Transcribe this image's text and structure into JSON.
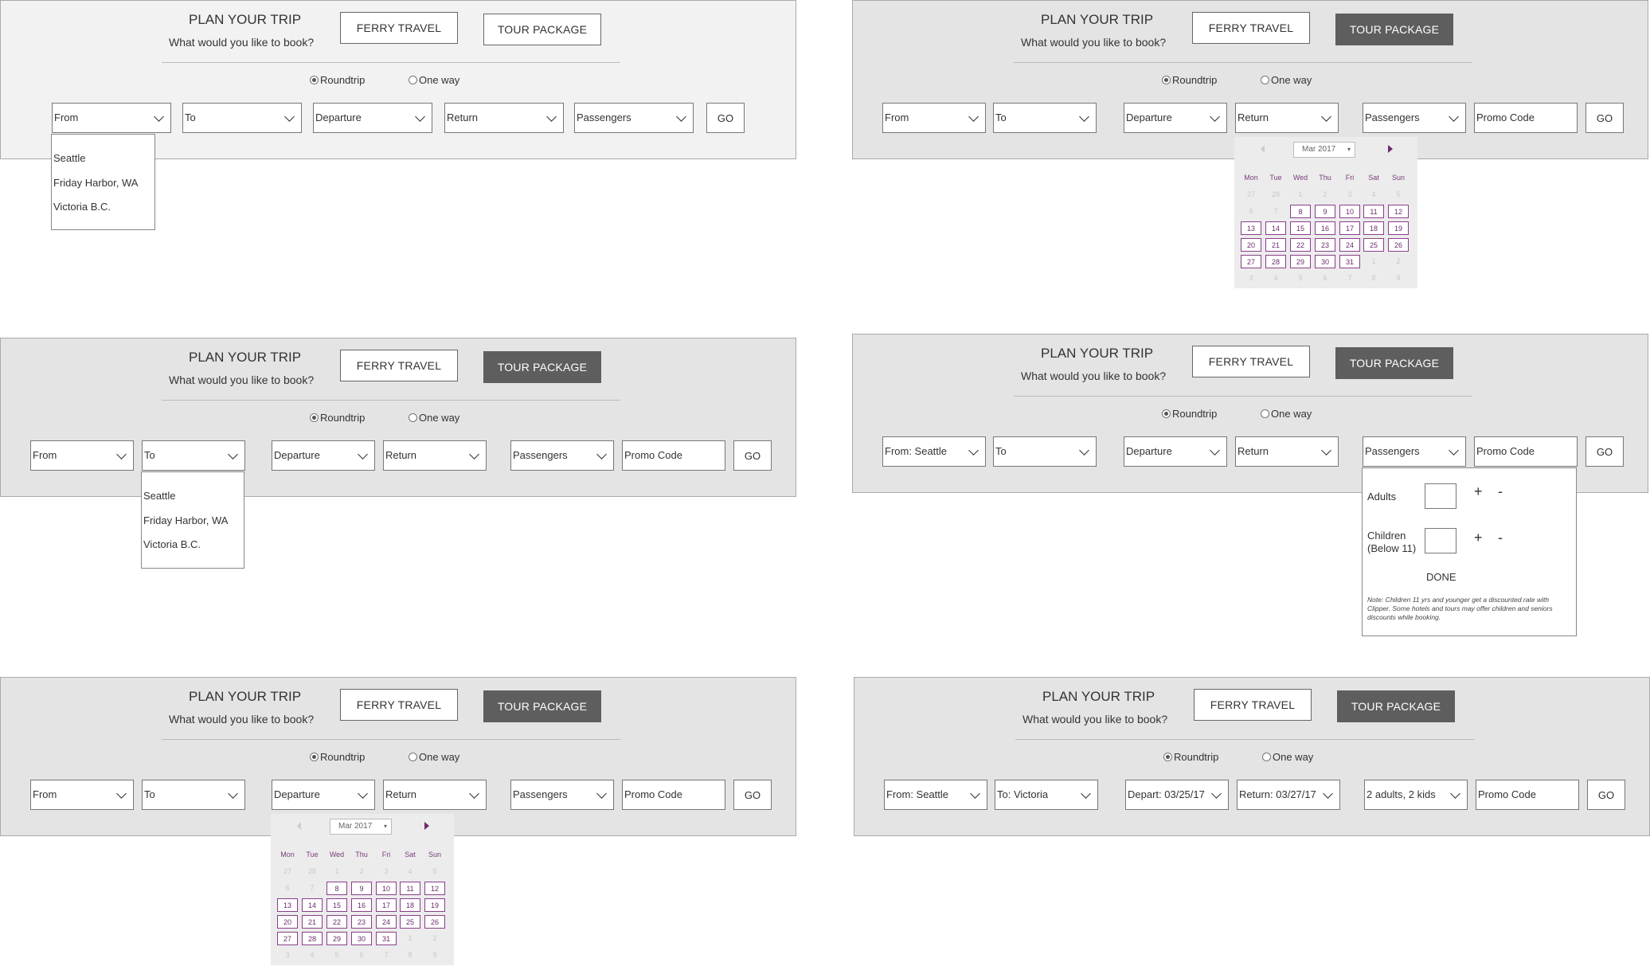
{
  "common": {
    "title": "PLAN YOUR TRIP",
    "subtitle": "What would you like to book?",
    "ferry_label": "FERRY TRAVEL",
    "tour_label": "TOUR PACKAGE",
    "roundtrip_label": "Roundtrip",
    "oneway_label": "One way",
    "go_label": "GO",
    "promo_placeholder": "Promo Code"
  },
  "panel1": {
    "from": "From",
    "to": "To",
    "departure": "Departure",
    "return": "Return",
    "passengers": "Passengers",
    "list": [
      "Seattle",
      "Friday Harbor, WA",
      "Victoria B.C."
    ]
  },
  "panel2": {
    "from": "From",
    "to": "To",
    "departure": "Departure",
    "return": "Return",
    "passengers": "Passengers"
  },
  "panel3": {
    "from": "From",
    "to": "To",
    "departure": "Departure",
    "return": "Return",
    "passengers": "Passengers",
    "list": [
      "Seattle",
      "Friday Harbor, WA",
      "Victoria B.C."
    ]
  },
  "panel4": {
    "from": "From: Seattle",
    "to": "To",
    "departure": "Departure",
    "return": "Return",
    "passengers": "Passengers",
    "adults_label": "Adults",
    "children_label_1": "Children",
    "children_label_2": "(Below 11)",
    "plus": "+",
    "minus": "-",
    "done_label": "DONE",
    "note": "Note: Children 11 yrs and younger get a discounted rate with Clipper. Some hotels and tours may offer children and seniors discounts while booking."
  },
  "panel5": {
    "from": "From",
    "to": "To",
    "departure": "Departure",
    "return": "Return",
    "passengers": "Passengers"
  },
  "panel6": {
    "from": "From: Seattle",
    "to": "To: Victoria",
    "departure": "Depart: 03/25/17",
    "return": "Return: 03/27/17",
    "passengers": "2 adults, 2 kids"
  },
  "calendar": {
    "month_label": "Mar 2017",
    "weekdays": [
      "Mon",
      "Tue",
      "Wed",
      "Thu",
      "Fri",
      "Sat",
      "Sun"
    ],
    "rows": [
      [
        "27",
        "28",
        "1",
        "2",
        "3",
        "4",
        "5"
      ],
      [
        "6",
        "7",
        "8",
        "9",
        "10",
        "11",
        "12"
      ],
      [
        "13",
        "14",
        "15",
        "16",
        "17",
        "18",
        "19"
      ],
      [
        "20",
        "21",
        "22",
        "23",
        "24",
        "25",
        "26"
      ],
      [
        "27",
        "28",
        "29",
        "30",
        "31",
        "1",
        "2"
      ],
      [
        "3",
        "4",
        "5",
        "6",
        "7",
        "8",
        "9"
      ]
    ]
  }
}
